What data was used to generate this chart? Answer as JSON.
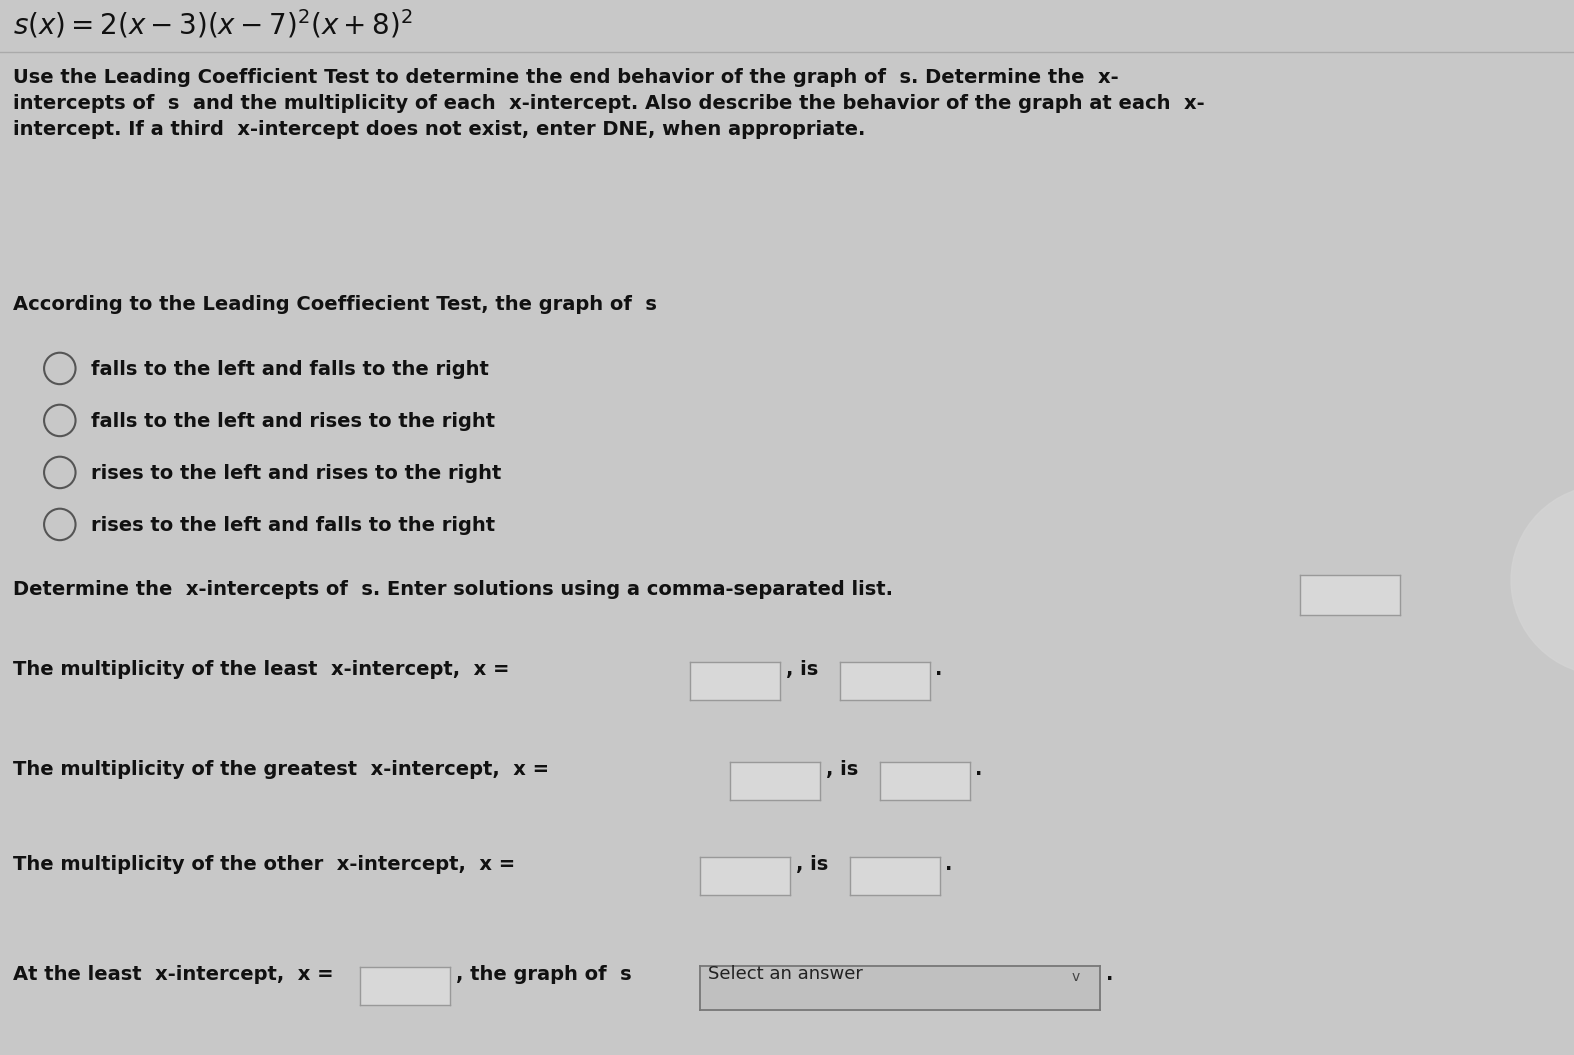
{
  "background_color": "#c8c8c8",
  "text_color": "#111111",
  "box_facecolor": "#d8d8d8",
  "box_edgecolor": "#999999",
  "radio_color": "#555555",
  "dropdown_facecolor": "#c0c0c0",
  "dropdown_edgecolor": "#777777",
  "title": "s(x) = 2(x-3)(x-7)^2(x+8)^2",
  "instruction_lines": [
    "Use the Leading Coefficient Test to determine the end behavior of the graph of s. Determine the x-",
    "intercepts of s and the multiplicity of each x-intercept. Also describe the behavior of the graph at each x-",
    "intercept. If a third x-intercept does not exist, enter DNE, when appropriate."
  ],
  "leading_label": "According to the Leading Coeffiecient Test, the graph of s",
  "radio_options": [
    "falls to the left and falls to the right",
    "falls to the left and rises to the right",
    "rises to the left and rises to the right",
    "rises to the left and falls to the right"
  ],
  "fs_title": 20,
  "fs_body": 14,
  "fs_small": 13
}
